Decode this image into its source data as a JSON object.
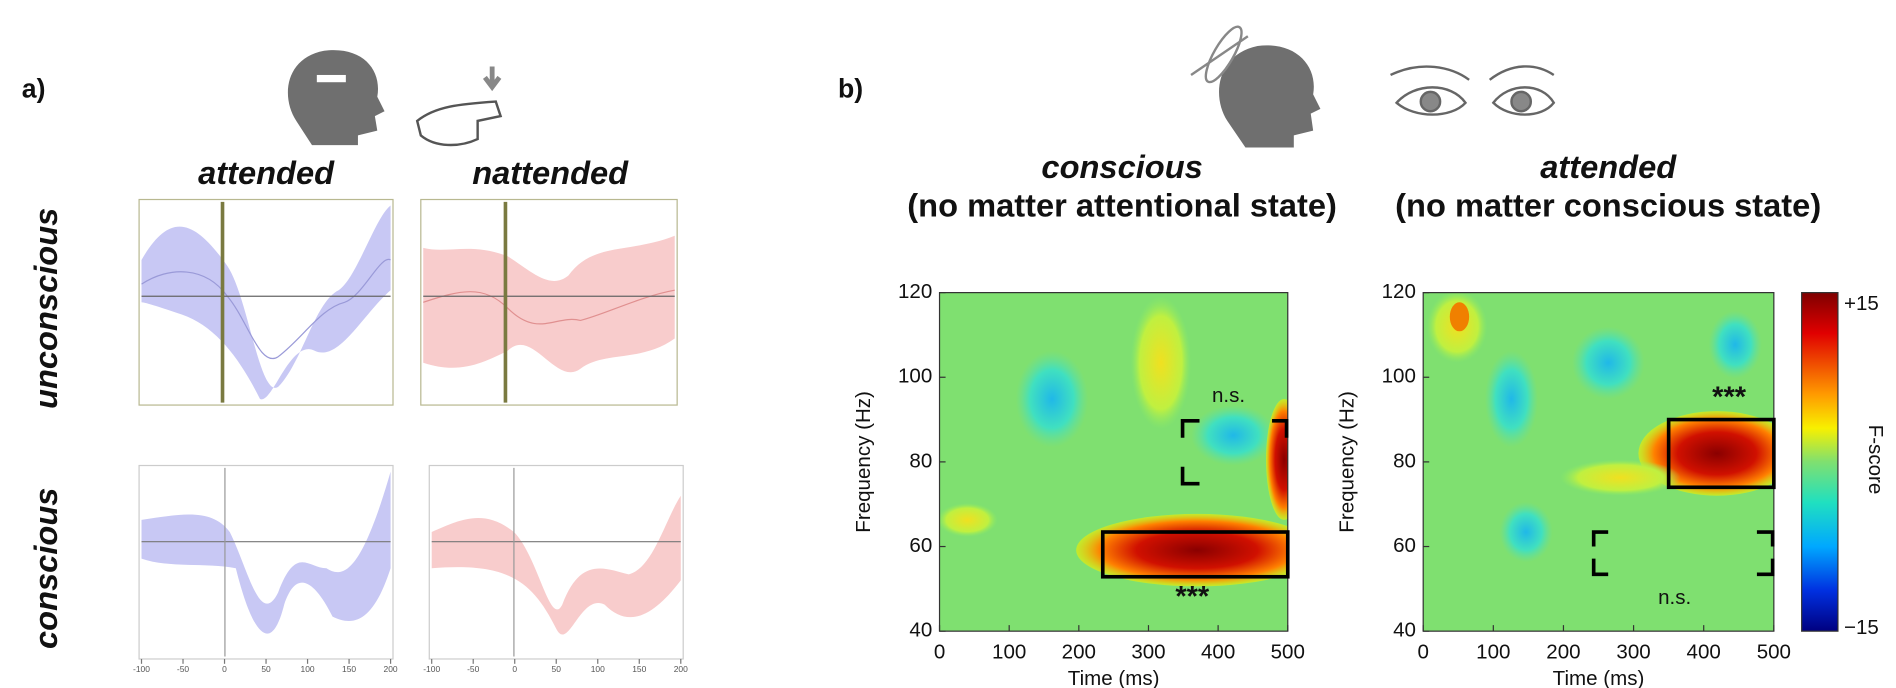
{
  "panel_a": {
    "label": "a)",
    "columns": [
      "attended",
      "nattended"
    ],
    "rows": [
      "unconscious",
      "conscious"
    ],
    "xticks": [
      -100,
      -50,
      0,
      50,
      100,
      150,
      200
    ]
  },
  "panel_b": {
    "label": "b)",
    "colorbar": {
      "max_label": "+15",
      "min_label": "−15",
      "title": "F-score"
    },
    "plots": [
      {
        "title": "conscious",
        "subtitle": "(no matter attentional state)",
        "xlabel": "Time (ms)",
        "ylabel": "Frequency (Hz)",
        "xlim": [
          0,
          500
        ],
        "ylim": [
          40,
          120
        ],
        "xticks": [
          0,
          100,
          200,
          300,
          400,
          500
        ],
        "yticks": [
          40,
          60,
          80,
          100,
          120
        ],
        "annotations": [
          "n.s.",
          "***"
        ]
      },
      {
        "title": "attended",
        "subtitle": "(no matter conscious state)",
        "xlabel": "Time (ms)",
        "ylabel": "Frequency (Hz)",
        "xlim": [
          0,
          500
        ],
        "ylim": [
          40,
          120
        ],
        "xticks": [
          0,
          100,
          200,
          300,
          400,
          500
        ],
        "yticks": [
          40,
          60,
          80,
          100,
          120
        ],
        "annotations": [
          "n.s.",
          "***"
        ]
      }
    ]
  }
}
